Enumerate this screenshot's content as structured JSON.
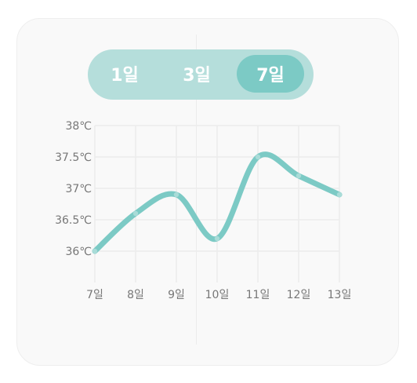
{
  "range_selector": {
    "options": [
      {
        "label": "1일",
        "active": false
      },
      {
        "label": "3일",
        "active": false
      },
      {
        "label": "7일",
        "active": true
      }
    ]
  },
  "colors": {
    "accent": "#7ccac5",
    "selector_bg": "#b5dedb",
    "card_bg": "#f9f9f9",
    "grid": "#ececec",
    "tick_text": "#777777"
  },
  "chart_data": {
    "type": "line",
    "title": "",
    "xlabel": "",
    "ylabel": "",
    "categories": [
      "7일",
      "8일",
      "9일",
      "10일",
      "11일",
      "12일",
      "13일"
    ],
    "series": [
      {
        "values": [
          36.0,
          36.6,
          36.9,
          36.2,
          37.5,
          37.2,
          36.9
        ]
      }
    ],
    "yticks": [
      "36℃",
      "36.5℃",
      "37℃",
      "37.5℃",
      "38℃"
    ],
    "ytick_values": [
      36,
      36.5,
      37,
      37.5,
      38
    ],
    "ylim": [
      36,
      38
    ],
    "grid": true,
    "smooth": true,
    "legend": "none"
  }
}
